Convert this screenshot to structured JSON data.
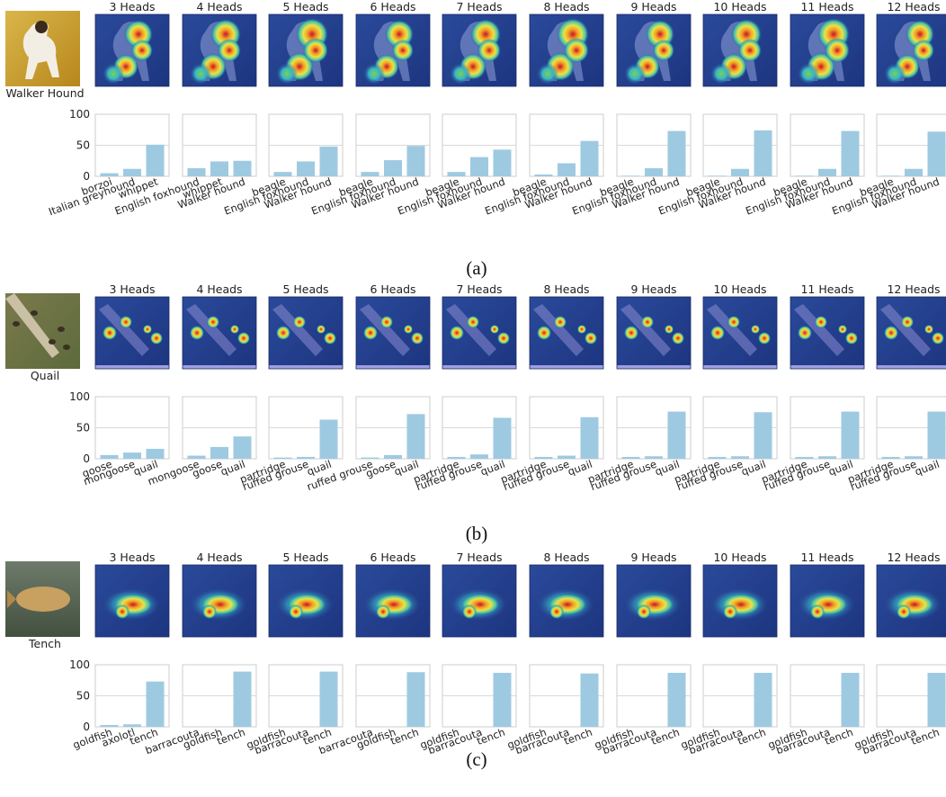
{
  "panels": [
    {
      "label": "(a)",
      "source_label": "Walker Hound",
      "source_image": "dog-photo",
      "heatmap_style": "dog",
      "heads": [
        {
          "title": "3 Heads",
          "categories": [
            "borzoi",
            "Italian greyhound",
            "whippet"
          ],
          "values": [
            5,
            12,
            51
          ]
        },
        {
          "title": "4 Heads",
          "categories": [
            "English foxhound",
            "whippet",
            "Walker hound"
          ],
          "values": [
            13,
            24,
            25
          ]
        },
        {
          "title": "5 Heads",
          "categories": [
            "beagle",
            "English foxhound",
            "Walker hound"
          ],
          "values": [
            7,
            24,
            48
          ]
        },
        {
          "title": "6 Heads",
          "categories": [
            "beagle",
            "English foxhound",
            "Walker hound"
          ],
          "values": [
            7,
            26,
            49
          ]
        },
        {
          "title": "7 Heads",
          "categories": [
            "beagle",
            "English foxhound",
            "Walker hound"
          ],
          "values": [
            7,
            31,
            43
          ]
        },
        {
          "title": "8 Heads",
          "categories": [
            "beagle",
            "English foxhound",
            "Walker hound"
          ],
          "values": [
            3,
            21,
            57
          ]
        },
        {
          "title": "9 Heads",
          "categories": [
            "beagle",
            "English foxhound",
            "Walker hound"
          ],
          "values": [
            1,
            13,
            73
          ]
        },
        {
          "title": "10 Heads",
          "categories": [
            "beagle",
            "English foxhound",
            "Walker hound"
          ],
          "values": [
            1,
            12,
            74
          ]
        },
        {
          "title": "11 Heads",
          "categories": [
            "beagle",
            "English foxhound",
            "Walker hound"
          ],
          "values": [
            1,
            12,
            73
          ]
        },
        {
          "title": "12 Heads",
          "categories": [
            "beagle",
            "English foxhound",
            "Walker hound"
          ],
          "values": [
            1,
            12,
            72
          ]
        }
      ]
    },
    {
      "label": "(b)",
      "source_label": "Quail",
      "source_image": "quail-photo",
      "heatmap_style": "quail",
      "heads": [
        {
          "title": "3 Heads",
          "categories": [
            "goose",
            "mongoose",
            "quail"
          ],
          "values": [
            6,
            10,
            16
          ]
        },
        {
          "title": "4 Heads",
          "categories": [
            "mongoose",
            "goose",
            "quail"
          ],
          "values": [
            5,
            19,
            36
          ]
        },
        {
          "title": "5 Heads",
          "categories": [
            "partridge",
            "ruffed grouse",
            "quail"
          ],
          "values": [
            2,
            3,
            63
          ]
        },
        {
          "title": "6 Heads",
          "categories": [
            "ruffed grouse",
            "goose",
            "quail"
          ],
          "values": [
            2,
            6,
            72
          ]
        },
        {
          "title": "7 Heads",
          "categories": [
            "partridge",
            "ruffed grouse",
            "quail"
          ],
          "values": [
            3,
            7,
            66
          ]
        },
        {
          "title": "8 Heads",
          "categories": [
            "partridge",
            "ruffed grouse",
            "quail"
          ],
          "values": [
            3,
            5,
            67
          ]
        },
        {
          "title": "9 Heads",
          "categories": [
            "partridge",
            "ruffed grouse",
            "quail"
          ],
          "values": [
            3,
            4,
            76
          ]
        },
        {
          "title": "10 Heads",
          "categories": [
            "partridge",
            "ruffed grouse",
            "quail"
          ],
          "values": [
            3,
            4,
            75
          ]
        },
        {
          "title": "11 Heads",
          "categories": [
            "partridge",
            "ruffed grouse",
            "quail"
          ],
          "values": [
            3,
            4,
            76
          ]
        },
        {
          "title": "12 Heads",
          "categories": [
            "partridge",
            "ruffed grouse",
            "quail"
          ],
          "values": [
            3,
            4,
            76
          ]
        }
      ]
    },
    {
      "label": "(c)",
      "source_label": "Tench",
      "source_image": "tench-photo",
      "heatmap_style": "fish",
      "heads": [
        {
          "title": "3 Heads",
          "categories": [
            "goldfish",
            "axolotl",
            "tench"
          ],
          "values": [
            3,
            4,
            73
          ]
        },
        {
          "title": "4 Heads",
          "categories": [
            "barracouta",
            "goldfish",
            "tench"
          ],
          "values": [
            0,
            0,
            89
          ]
        },
        {
          "title": "5 Heads",
          "categories": [
            "goldfish",
            "barracouta",
            "tench"
          ],
          "values": [
            0,
            0,
            89
          ]
        },
        {
          "title": "6 Heads",
          "categories": [
            "barracouta",
            "goldfish",
            "tench"
          ],
          "values": [
            0,
            0,
            88
          ]
        },
        {
          "title": "7 Heads",
          "categories": [
            "goldfish",
            "barracouta",
            "tench"
          ],
          "values": [
            0,
            0,
            87
          ]
        },
        {
          "title": "8 Heads",
          "categories": [
            "goldfish",
            "barracouta",
            "tench"
          ],
          "values": [
            0,
            0,
            86
          ]
        },
        {
          "title": "9 Heads",
          "categories": [
            "goldfish",
            "barracouta",
            "tench"
          ],
          "values": [
            0,
            0,
            87
          ]
        },
        {
          "title": "10 Heads",
          "categories": [
            "goldfish",
            "barracouta",
            "tench"
          ],
          "values": [
            0,
            0,
            87
          ]
        },
        {
          "title": "11 Heads",
          "categories": [
            "goldfish",
            "barracouta",
            "tench"
          ],
          "values": [
            0,
            0,
            87
          ]
        },
        {
          "title": "12 Heads",
          "categories": [
            "goldfish",
            "barracouta",
            "tench"
          ],
          "values": [
            0,
            0,
            87
          ]
        }
      ]
    }
  ],
  "y_ticks": [
    "100",
    "50",
    "0"
  ],
  "ylim": [
    0,
    100
  ],
  "bar_color": "#9ecae1",
  "chart_data": [
    {
      "type": "bar",
      "title": "3 Heads",
      "categories": [
        "borzoi",
        "Italian greyhound",
        "whippet"
      ],
      "values": [
        5,
        12,
        51
      ],
      "ylim": [
        0,
        100
      ]
    },
    {
      "type": "bar",
      "title": "4 Heads",
      "categories": [
        "English foxhound",
        "whippet",
        "Walker hound"
      ],
      "values": [
        13,
        24,
        25
      ],
      "ylim": [
        0,
        100
      ]
    },
    {
      "type": "bar",
      "title": "5 Heads",
      "categories": [
        "beagle",
        "English foxhound",
        "Walker hound"
      ],
      "values": [
        7,
        24,
        48
      ],
      "ylim": [
        0,
        100
      ]
    },
    {
      "type": "bar",
      "title": "6 Heads",
      "categories": [
        "beagle",
        "English foxhound",
        "Walker hound"
      ],
      "values": [
        7,
        26,
        49
      ],
      "ylim": [
        0,
        100
      ]
    },
    {
      "type": "bar",
      "title": "7 Heads",
      "categories": [
        "beagle",
        "English foxhound",
        "Walker hound"
      ],
      "values": [
        7,
        31,
        43
      ],
      "ylim": [
        0,
        100
      ]
    },
    {
      "type": "bar",
      "title": "8 Heads",
      "categories": [
        "beagle",
        "English foxhound",
        "Walker hound"
      ],
      "values": [
        3,
        21,
        57
      ],
      "ylim": [
        0,
        100
      ]
    },
    {
      "type": "bar",
      "title": "9 Heads",
      "categories": [
        "beagle",
        "English foxhound",
        "Walker hound"
      ],
      "values": [
        1,
        13,
        73
      ],
      "ylim": [
        0,
        100
      ]
    },
    {
      "type": "bar",
      "title": "10 Heads",
      "categories": [
        "beagle",
        "English foxhound",
        "Walker hound"
      ],
      "values": [
        1,
        12,
        74
      ],
      "ylim": [
        0,
        100
      ]
    },
    {
      "type": "bar",
      "title": "11 Heads",
      "categories": [
        "beagle",
        "English foxhound",
        "Walker hound"
      ],
      "values": [
        1,
        12,
        73
      ],
      "ylim": [
        0,
        100
      ]
    },
    {
      "type": "bar",
      "title": "12 Heads",
      "categories": [
        "beagle",
        "English foxhound",
        "Walker hound"
      ],
      "values": [
        1,
        12,
        72
      ],
      "ylim": [
        0,
        100
      ]
    },
    {
      "type": "bar",
      "title": "3 Heads",
      "categories": [
        "goose",
        "mongoose",
        "quail"
      ],
      "values": [
        6,
        10,
        16
      ],
      "ylim": [
        0,
        100
      ]
    },
    {
      "type": "bar",
      "title": "4 Heads",
      "categories": [
        "mongoose",
        "goose",
        "quail"
      ],
      "values": [
        5,
        19,
        36
      ],
      "ylim": [
        0,
        100
      ]
    },
    {
      "type": "bar",
      "title": "5 Heads",
      "categories": [
        "partridge",
        "ruffed grouse",
        "quail"
      ],
      "values": [
        2,
        3,
        63
      ],
      "ylim": [
        0,
        100
      ]
    },
    {
      "type": "bar",
      "title": "6 Heads",
      "categories": [
        "ruffed grouse",
        "goose",
        "quail"
      ],
      "values": [
        2,
        6,
        72
      ],
      "ylim": [
        0,
        100
      ]
    },
    {
      "type": "bar",
      "title": "7 Heads",
      "categories": [
        "partridge",
        "ruffed grouse",
        "quail"
      ],
      "values": [
        3,
        7,
        66
      ],
      "ylim": [
        0,
        100
      ]
    },
    {
      "type": "bar",
      "title": "8 Heads",
      "categories": [
        "partridge",
        "ruffed grouse",
        "quail"
      ],
      "values": [
        3,
        5,
        67
      ],
      "ylim": [
        0,
        100
      ]
    },
    {
      "type": "bar",
      "title": "9 Heads",
      "categories": [
        "partridge",
        "ruffed grouse",
        "quail"
      ],
      "values": [
        3,
        4,
        76
      ],
      "ylim": [
        0,
        100
      ]
    },
    {
      "type": "bar",
      "title": "10 Heads",
      "categories": [
        "partridge",
        "ruffed grouse",
        "quail"
      ],
      "values": [
        3,
        4,
        75
      ],
      "ylim": [
        0,
        100
      ]
    },
    {
      "type": "bar",
      "title": "11 Heads",
      "categories": [
        "partridge",
        "ruffed grouse",
        "quail"
      ],
      "values": [
        3,
        4,
        76
      ],
      "ylim": [
        0,
        100
      ]
    },
    {
      "type": "bar",
      "title": "12 Heads",
      "categories": [
        "partridge",
        "ruffed grouse",
        "quail"
      ],
      "values": [
        3,
        4,
        76
      ],
      "ylim": [
        0,
        100
      ]
    },
    {
      "type": "bar",
      "title": "3 Heads",
      "categories": [
        "goldfish",
        "axolotl",
        "tench"
      ],
      "values": [
        3,
        4,
        73
      ],
      "ylim": [
        0,
        100
      ]
    },
    {
      "type": "bar",
      "title": "4 Heads",
      "categories": [
        "barracouta",
        "goldfish",
        "tench"
      ],
      "values": [
        0,
        0,
        89
      ],
      "ylim": [
        0,
        100
      ]
    },
    {
      "type": "bar",
      "title": "5 Heads",
      "categories": [
        "goldfish",
        "barracouta",
        "tench"
      ],
      "values": [
        0,
        0,
        89
      ],
      "ylim": [
        0,
        100
      ]
    },
    {
      "type": "bar",
      "title": "6 Heads",
      "categories": [
        "barracouta",
        "goldfish",
        "tench"
      ],
      "values": [
        0,
        0,
        88
      ],
      "ylim": [
        0,
        100
      ]
    },
    {
      "type": "bar",
      "title": "7 Heads",
      "categories": [
        "goldfish",
        "barracouta",
        "tench"
      ],
      "values": [
        0,
        0,
        87
      ],
      "ylim": [
        0,
        100
      ]
    },
    {
      "type": "bar",
      "title": "8 Heads",
      "categories": [
        "goldfish",
        "barracouta",
        "tench"
      ],
      "values": [
        0,
        0,
        86
      ],
      "ylim": [
        0,
        100
      ]
    },
    {
      "type": "bar",
      "title": "9 Heads",
      "categories": [
        "goldfish",
        "barracouta",
        "tench"
      ],
      "values": [
        0,
        0,
        87
      ],
      "ylim": [
        0,
        100
      ]
    },
    {
      "type": "bar",
      "title": "10 Heads",
      "categories": [
        "goldfish",
        "barracouta",
        "tench"
      ],
      "values": [
        0,
        0,
        87
      ],
      "ylim": [
        0,
        100
      ]
    },
    {
      "type": "bar",
      "title": "11 Heads",
      "categories": [
        "goldfish",
        "barracouta",
        "tench"
      ],
      "values": [
        0,
        0,
        87
      ],
      "ylim": [
        0,
        100
      ]
    },
    {
      "type": "bar",
      "title": "12 Heads",
      "categories": [
        "goldfish",
        "barracouta",
        "tench"
      ],
      "values": [
        0,
        0,
        87
      ],
      "ylim": [
        0,
        100
      ]
    }
  ]
}
